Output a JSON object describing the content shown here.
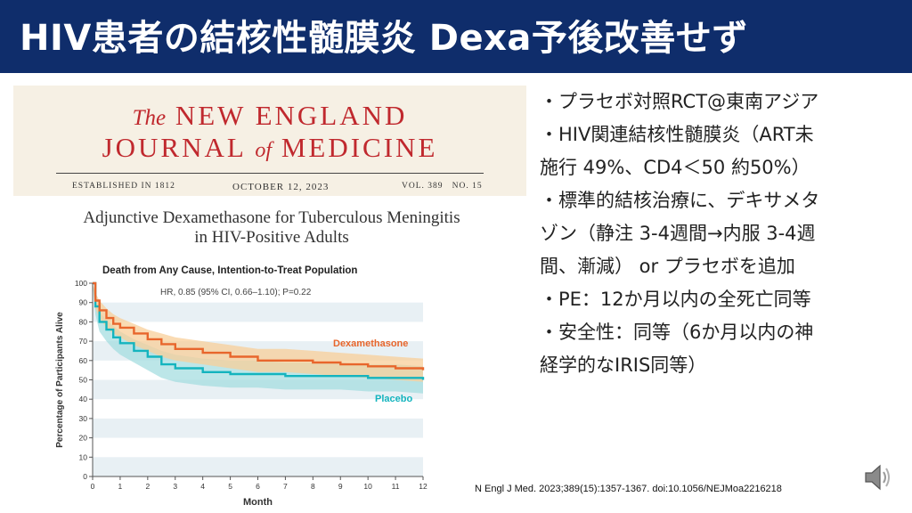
{
  "slide": {
    "title": "HIV患者の結核性髄膜炎 Dexa予後改善せず"
  },
  "journal": {
    "the": "The",
    "name_line1": "NEW ENGLAND",
    "name_line2_a": "JOURNAL",
    "of": "of",
    "name_line2_b": "MEDICINE",
    "established": "ESTABLISHED IN 1812",
    "date": "OCTOBER 12, 2023",
    "volume": "VOL. 389   NO. 15"
  },
  "article": {
    "title_line1": "Adjunctive Dexamethasone for Tuberculous Meningitis",
    "title_line2": "in HIV-Positive Adults"
  },
  "bullets": [
    "・プラセボ対照RCT@東南アジア",
    "・HIV関連結核性髄膜炎（ART未",
    "施行 49%、CD4＜50 約50%）",
    "・標準的結核治療に、デキサメタ",
    "ゾン（静注 3-4週間→内服 3-4週",
    "間、漸減） or プラセボを追加",
    "・PE：12か月以内の全死亡同等",
    "・安全性：同等（6か月以内の神",
    "経学的なIRIS同等）"
  ],
  "citation": "N Engl J Med. 2023;389(15):1357-1367. doi:10.1056/NEJMoa2216218",
  "icons": {
    "speaker": "speaker-icon"
  },
  "colors": {
    "title_bar": "#0f2d6b",
    "dexamethasone": "#e8662c",
    "placebo": "#14b4be",
    "dexa_ci": "#f8cf9a",
    "placebo_ci": "#a6dde0",
    "masthead_red": "#c0292e"
  },
  "chart_data": {
    "type": "line",
    "title": "Death from Any Cause, Intention-to-Treat Population",
    "annotation": "HR, 0.85 (95% CI, 0.66–1.10); P=0.22",
    "xlabel": "Month",
    "ylabel": "Percentage of Participants Alive",
    "xlim": [
      0,
      12
    ],
    "ylim": [
      0,
      100
    ],
    "xticks": [
      0,
      1,
      2,
      3,
      4,
      5,
      6,
      7,
      8,
      9,
      10,
      11,
      12
    ],
    "yticks": [
      0,
      10,
      20,
      30,
      40,
      50,
      60,
      70,
      80,
      90,
      100
    ],
    "grid": "horizontal bands",
    "series": [
      {
        "name": "Dexamethasone",
        "x": [
          0,
          0.1,
          0.25,
          0.5,
          0.75,
          1,
          1.5,
          2,
          2.5,
          3,
          4,
          5,
          6,
          7,
          8,
          9,
          10,
          11,
          12
        ],
        "y": [
          100,
          91,
          86,
          82,
          79,
          77,
          74,
          71,
          68.5,
          66,
          64,
          62,
          60,
          60,
          59,
          58,
          57,
          56,
          55
        ],
        "ci_lower": [
          100,
          87,
          82,
          77,
          74,
          72,
          68,
          65,
          62,
          60,
          58,
          56,
          54,
          54,
          53,
          52,
          51,
          50,
          49
        ],
        "ci_upper": [
          100,
          95,
          91,
          87,
          84,
          82,
          79,
          76,
          74,
          72,
          70,
          68,
          66,
          66,
          65,
          64,
          63,
          62,
          61
        ]
      },
      {
        "name": "Placebo",
        "x": [
          0,
          0.1,
          0.25,
          0.5,
          0.75,
          1,
          1.5,
          2,
          2.5,
          3,
          4,
          5,
          6,
          7,
          8,
          9,
          10,
          11,
          12
        ],
        "y": [
          100,
          88,
          80,
          76,
          72,
          69,
          65,
          62,
          58,
          56,
          54,
          53,
          53,
          52,
          52,
          52,
          51,
          51,
          50
        ],
        "ci_lower": [
          100,
          84,
          75,
          70,
          66,
          63,
          59,
          55,
          51,
          49,
          47,
          46,
          46,
          45,
          45,
          45,
          44,
          44,
          43
        ],
        "ci_upper": [
          100,
          92,
          85,
          81,
          78,
          75,
          71,
          68,
          65,
          63,
          61,
          60,
          60,
          59,
          59,
          59,
          58,
          58,
          57
        ]
      }
    ]
  }
}
